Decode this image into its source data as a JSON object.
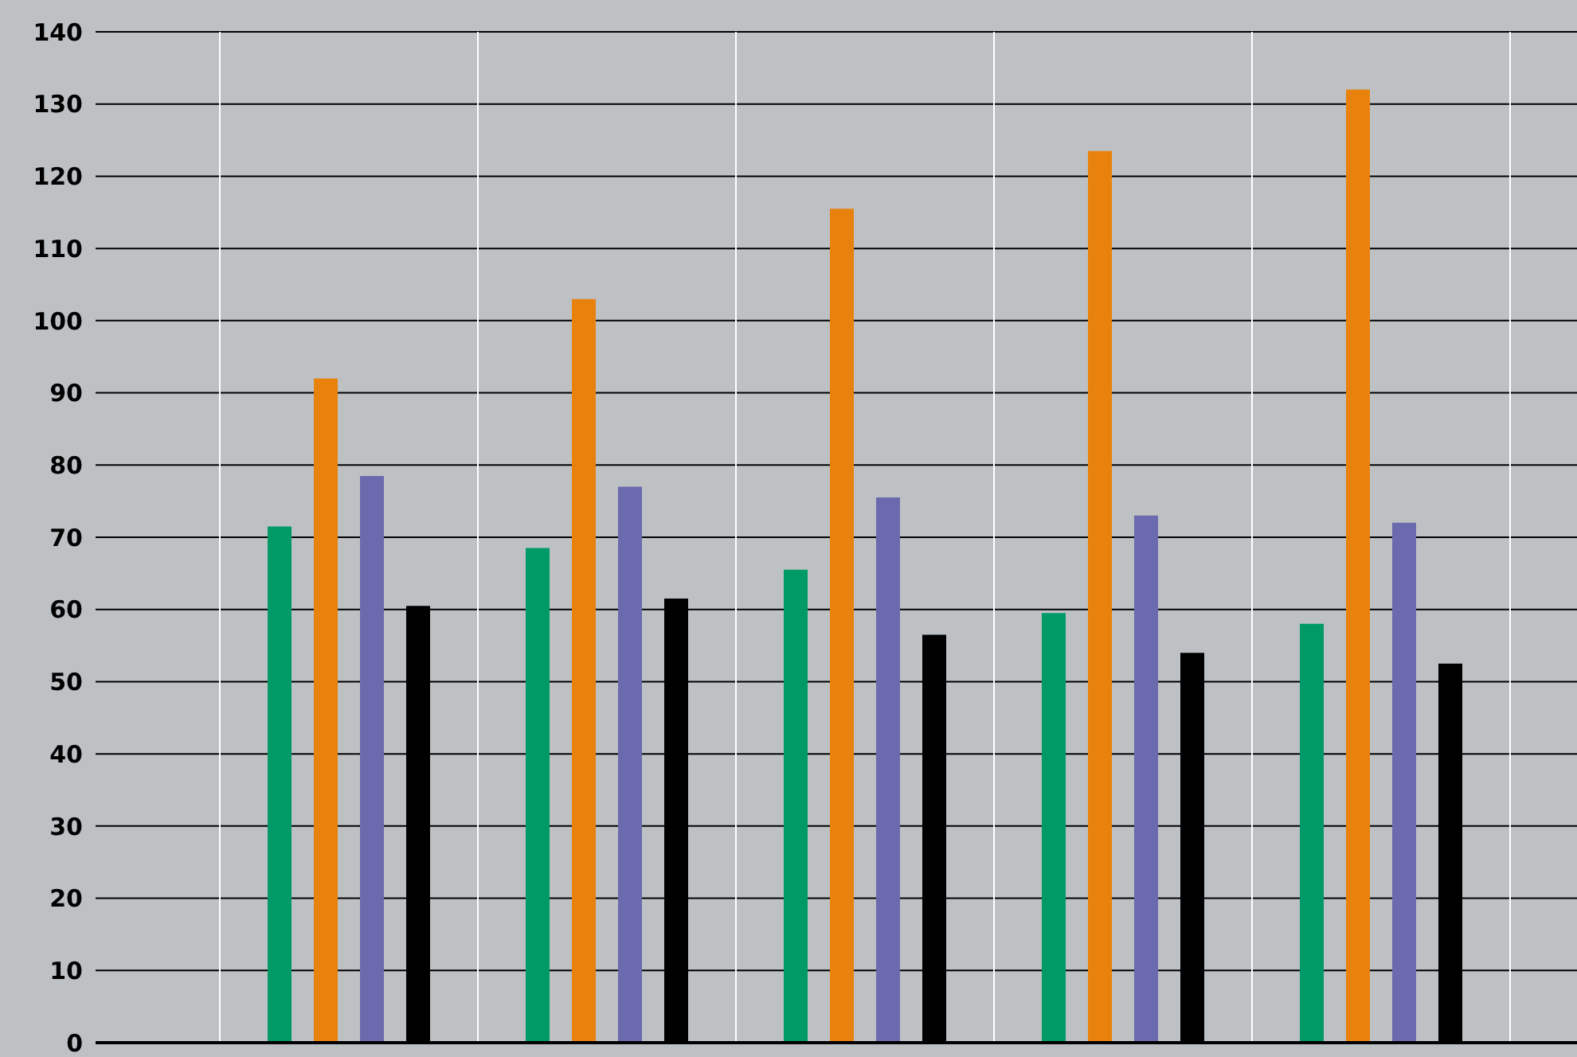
{
  "chart_data": {
    "type": "bar",
    "categories": [
      null,
      null,
      null,
      null,
      null
    ],
    "series": [
      {
        "color": "#009a66",
        "values": [
          71.5,
          68.5,
          65.5,
          59.5,
          58
        ]
      },
      {
        "color": "#e8820c",
        "values": [
          92,
          103,
          115.5,
          123.5,
          132
        ]
      },
      {
        "color": "#6c6aae",
        "values": [
          78.5,
          77,
          75.5,
          73,
          72
        ]
      },
      {
        "color": "#000000",
        "values": [
          60.5,
          61.5,
          56.5,
          54,
          52.5
        ]
      }
    ],
    "ylim": [
      0,
      140
    ],
    "yticks": [
      0,
      10,
      20,
      30,
      40,
      50,
      60,
      70,
      80,
      90,
      100,
      110,
      120,
      130,
      140
    ],
    "grid": true
  }
}
